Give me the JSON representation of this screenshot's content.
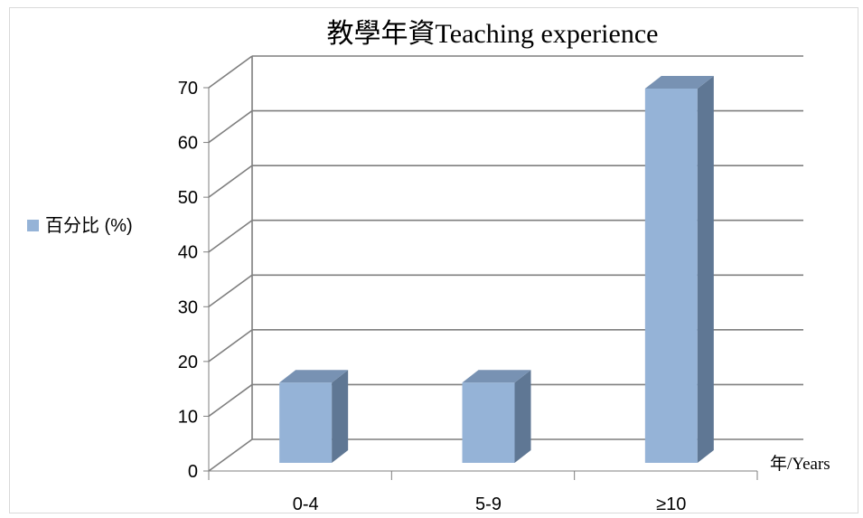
{
  "chart_data": {
    "type": "bar",
    "title": "教學年資Teaching experience",
    "categories": [
      "0-4",
      "5-9",
      "≥10"
    ],
    "series": [
      {
        "name": "百分比 (%)",
        "values": [
          15,
          15,
          70
        ],
        "color": "#95b3d7"
      }
    ],
    "xlabel": "年/Years",
    "ylabel": "",
    "ylim": [
      0,
      70
    ],
    "yticks": [
      0,
      10,
      20,
      30,
      40,
      50,
      60,
      70
    ],
    "grid": true,
    "three_d": true,
    "legend_position": "left"
  },
  "colors": {
    "bar_front": "#95b3d7",
    "bar_side": "#5f7794",
    "bar_top": "#7892b3",
    "grid": "#7f7f7f",
    "frame": "#d9d9d9"
  }
}
